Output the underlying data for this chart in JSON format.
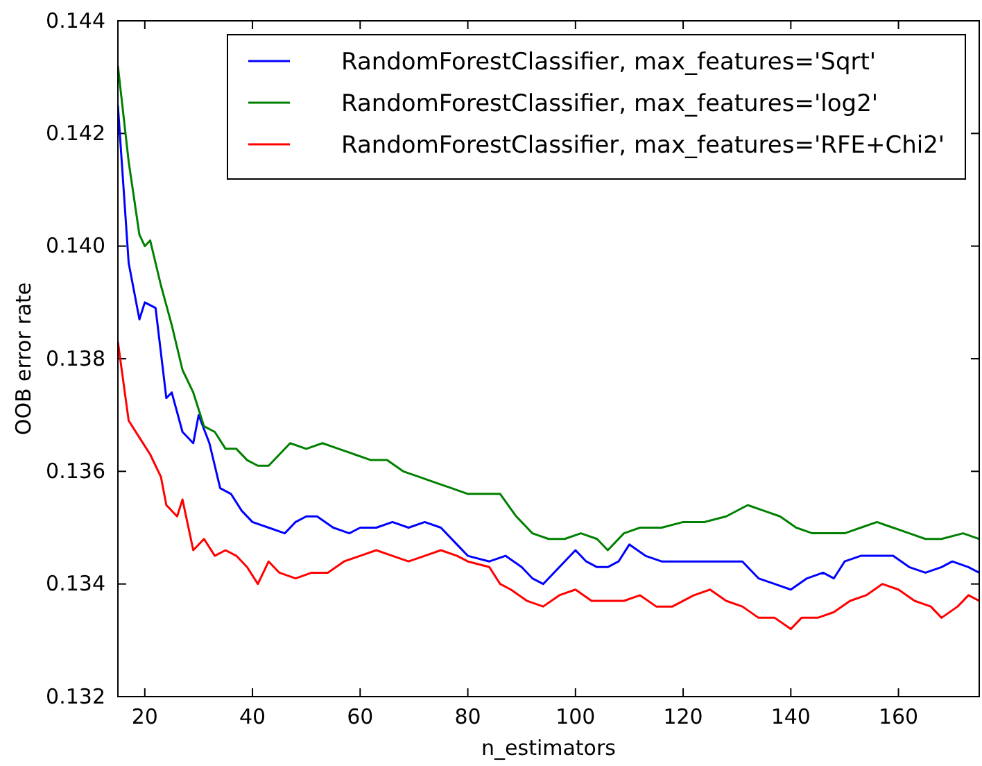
{
  "chart_data": {
    "type": "line",
    "xlabel": "n_estimators",
    "ylabel": "OOB error rate",
    "xlim": [
      15,
      175
    ],
    "xticks": [
      20,
      40,
      60,
      80,
      100,
      120,
      140,
      160
    ],
    "ylim": [
      0.132,
      0.144
    ],
    "yticks": [
      {
        "value": 0.132,
        "label": "0.132"
      },
      {
        "value": 0.134,
        "label": "0.134"
      },
      {
        "value": 0.136,
        "label": "0.136"
      },
      {
        "value": 0.138,
        "label": "0.138"
      },
      {
        "value": 0.14,
        "label": "0.140"
      },
      {
        "value": 0.142,
        "label": "0.142"
      },
      {
        "value": 0.144,
        "label": "0.144"
      }
    ],
    "grid": false,
    "legend": "top right",
    "marker": "none",
    "line_style": "solid",
    "series": [
      {
        "name": "RandomForestClassifier, max_features='Sqrt'",
        "color": "#0000ff",
        "x": [
          15,
          17,
          19,
          20,
          22,
          24,
          25,
          27,
          29,
          30,
          32,
          34,
          36,
          38,
          40,
          43,
          46,
          48,
          50,
          52,
          55,
          58,
          60,
          63,
          66,
          69,
          72,
          75,
          78,
          80,
          84,
          87,
          90,
          92,
          94,
          96,
          98,
          100,
          102,
          104,
          106,
          108,
          110,
          113,
          116,
          120,
          124,
          128,
          131,
          134,
          137,
          140,
          143,
          146,
          148,
          150,
          153,
          156,
          159,
          162,
          165,
          168,
          170,
          173,
          175
        ],
        "values": [
          0.1425,
          0.1397,
          0.1387,
          0.139,
          0.1389,
          0.1373,
          0.1374,
          0.1367,
          0.1365,
          0.137,
          0.1365,
          0.1357,
          0.1356,
          0.1353,
          0.1351,
          0.135,
          0.1349,
          0.1351,
          0.1352,
          0.1352,
          0.135,
          0.1349,
          0.135,
          0.135,
          0.1351,
          0.135,
          0.1351,
          0.135,
          0.1347,
          0.1345,
          0.1344,
          0.1345,
          0.1343,
          0.1341,
          0.134,
          0.1342,
          0.1344,
          0.1346,
          0.1344,
          0.1343,
          0.1343,
          0.1344,
          0.1347,
          0.1345,
          0.1344,
          0.1344,
          0.1344,
          0.1344,
          0.1344,
          0.1341,
          0.134,
          0.1339,
          0.1341,
          0.1342,
          0.1341,
          0.1344,
          0.1345,
          0.1345,
          0.1345,
          0.1343,
          0.1342,
          0.1343,
          0.1344,
          0.1343,
          0.1342
        ]
      },
      {
        "name": "RandomForestClassifier, max_features='log2'",
        "color": "#008000",
        "x": [
          15,
          17,
          19,
          20,
          21,
          23,
          25,
          27,
          29,
          31,
          33,
          35,
          37,
          39,
          41,
          43,
          45,
          47,
          50,
          53,
          56,
          59,
          62,
          65,
          68,
          71,
          74,
          77,
          80,
          83,
          86,
          89,
          92,
          95,
          98,
          101,
          104,
          106,
          109,
          112,
          116,
          120,
          124,
          128,
          132,
          135,
          138,
          141,
          144,
          147,
          150,
          153,
          156,
          159,
          162,
          165,
          168,
          172,
          175
        ],
        "values": [
          0.1432,
          0.1415,
          0.1402,
          0.14,
          0.1401,
          0.1393,
          0.1386,
          0.1378,
          0.1374,
          0.1368,
          0.1367,
          0.1364,
          0.1364,
          0.1362,
          0.1361,
          0.1361,
          0.1363,
          0.1365,
          0.1364,
          0.1365,
          0.1364,
          0.1363,
          0.1362,
          0.1362,
          0.136,
          0.1359,
          0.1358,
          0.1357,
          0.1356,
          0.1356,
          0.1356,
          0.1352,
          0.1349,
          0.1348,
          0.1348,
          0.1349,
          0.1348,
          0.1346,
          0.1349,
          0.135,
          0.135,
          0.1351,
          0.1351,
          0.1352,
          0.1354,
          0.1353,
          0.1352,
          0.135,
          0.1349,
          0.1349,
          0.1349,
          0.135,
          0.1351,
          0.135,
          0.1349,
          0.1348,
          0.1348,
          0.1349,
          0.1348
        ]
      },
      {
        "name": "RandomForestClassifier, max_features='RFE+Chi2'",
        "color": "#ff0000",
        "x": [
          15,
          17,
          19,
          21,
          23,
          24,
          26,
          27,
          29,
          31,
          33,
          35,
          37,
          39,
          41,
          43,
          45,
          48,
          51,
          54,
          57,
          60,
          63,
          66,
          69,
          72,
          75,
          78,
          80,
          84,
          86,
          88,
          91,
          94,
          97,
          100,
          103,
          106,
          109,
          112,
          115,
          118,
          122,
          125,
          128,
          131,
          134,
          137,
          140,
          142,
          145,
          148,
          151,
          154,
          157,
          160,
          163,
          166,
          168,
          171,
          173,
          175
        ],
        "values": [
          0.1383,
          0.1369,
          0.1366,
          0.1363,
          0.1359,
          0.1354,
          0.1352,
          0.1355,
          0.1346,
          0.1348,
          0.1345,
          0.1346,
          0.1345,
          0.1343,
          0.134,
          0.1344,
          0.1342,
          0.1341,
          0.1342,
          0.1342,
          0.1344,
          0.1345,
          0.1346,
          0.1345,
          0.1344,
          0.1345,
          0.1346,
          0.1345,
          0.1344,
          0.1343,
          0.134,
          0.1339,
          0.1337,
          0.1336,
          0.1338,
          0.1339,
          0.1337,
          0.1337,
          0.1337,
          0.1338,
          0.1336,
          0.1336,
          0.1338,
          0.1339,
          0.1337,
          0.1336,
          0.1334,
          0.1334,
          0.1332,
          0.1334,
          0.1334,
          0.1335,
          0.1337,
          0.1338,
          0.134,
          0.1339,
          0.1337,
          0.1336,
          0.1334,
          0.1336,
          0.1338,
          0.1337
        ]
      }
    ]
  }
}
